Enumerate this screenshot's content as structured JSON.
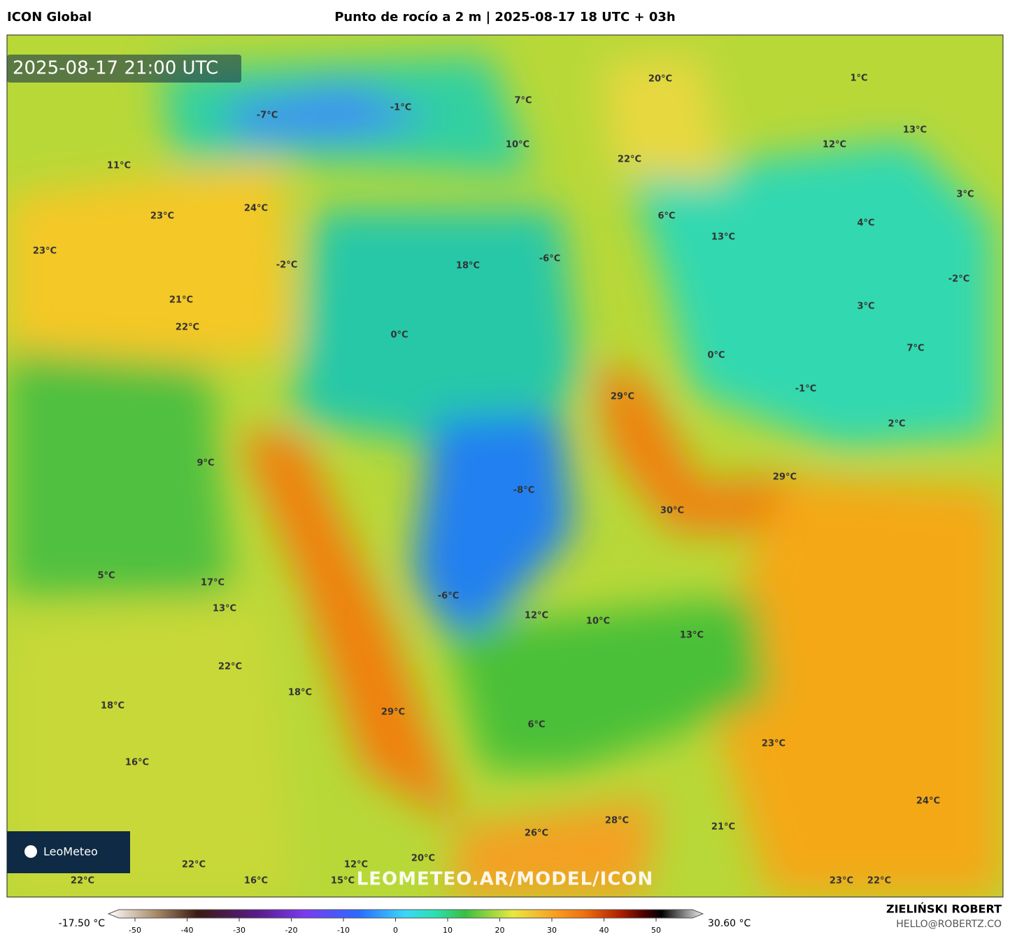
{
  "header": {
    "model": "ICON Global",
    "title": "Punto de rocío a 2 m | 2025-08-17 18 UTC + 03h"
  },
  "map": {
    "timestamp": "2025-08-17 21:00 UTC",
    "watermark": "LEOMETEO.AR/MODEL/ICON",
    "logo": "LeoMeteo",
    "labels": [
      "-7°C",
      "-1°C",
      "7°C",
      "20°C",
      "1°C",
      "13°C",
      "10°C",
      "22°C",
      "12°C",
      "11°C",
      "3°C",
      "23°C",
      "24°C",
      "6°C",
      "13°C",
      "4°C",
      "23°C",
      "-2°C",
      "-6°C",
      "18°C",
      "-2°C",
      "21°C",
      "3°C",
      "22°C",
      "0°C",
      "7°C",
      "0°C",
      "-1°C",
      "29°C",
      "2°C",
      "9°C",
      "29°C",
      "-8°C",
      "30°C",
      "5°C",
      "17°C",
      "13°C",
      "-6°C",
      "12°C",
      "10°C",
      "13°C",
      "22°C",
      "18°C",
      "18°C",
      "29°C",
      "6°C",
      "23°C",
      "16°C",
      "24°C",
      "28°C",
      "21°C",
      "26°C",
      "12°C",
      "20°C",
      "22°C",
      "22°C",
      "16°C",
      "15°C",
      "23°C",
      "22°C"
    ]
  },
  "colorbar": {
    "min_label": "-17.50 °C",
    "max_label": "30.60 °C",
    "ticks": [
      -50,
      -40,
      -30,
      -20,
      -10,
      0,
      10,
      20,
      30,
      40,
      50
    ]
  },
  "footer": {
    "author": "ZIELIŃSKI ROBERT",
    "email": "HELLO@ROBERTZ.CO"
  }
}
